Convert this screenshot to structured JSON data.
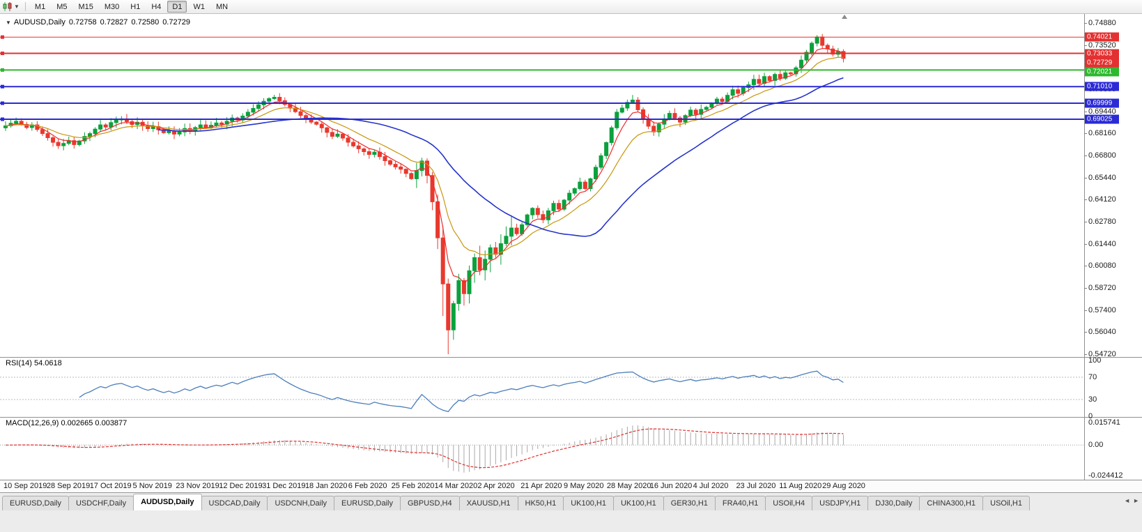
{
  "toolbar": {
    "timeframes": [
      "M1",
      "M5",
      "M15",
      "M30",
      "H1",
      "H4",
      "D1",
      "W1",
      "MN"
    ],
    "active_timeframe": "D1"
  },
  "main_chart": {
    "header": {
      "collapse_icon": "▼",
      "title": "AUDUSD,Daily",
      "open": "0.72758",
      "high": "0.72827",
      "low": "0.72580",
      "close": "0.72729"
    },
    "price_axis_ticks": [
      "0.74880",
      "0.73520",
      "0.72160",
      "0.70800",
      "0.69440",
      "0.68160",
      "0.66800",
      "0.65440",
      "0.64120",
      "0.62780",
      "0.61440",
      "0.60080",
      "0.58720",
      "0.57400",
      "0.56040",
      "0.54720"
    ],
    "horizontal_lines": [
      {
        "label": "0.74021",
        "price": 0.74021,
        "color": "#e33030",
        "thickness": 1
      },
      {
        "label": "0.73033",
        "price": 0.73033,
        "color": "#e33030",
        "thickness": 2
      },
      {
        "label": "0.72021",
        "price": 0.72021,
        "color": "#2db82d",
        "thickness": 2
      },
      {
        "label": "0.71010",
        "price": 0.7101,
        "color": "#2a2ad6",
        "thickness": 2
      },
      {
        "label": "0.69999",
        "price": 0.69999,
        "color": "#2a2ad6",
        "thickness": 2
      },
      {
        "label": "0.69025",
        "price": 0.69025,
        "color": "#2a2ad6",
        "thickness": 2
      }
    ],
    "current_price": {
      "label": "0.72729",
      "price": 0.72729,
      "color": "#e33030"
    }
  },
  "rsi_panel": {
    "label": "RSI(14) 54.0618",
    "axis_ticks": [
      {
        "label": "100",
        "value": 100
      },
      {
        "label": "70",
        "value": 70
      },
      {
        "label": "30",
        "value": 30
      },
      {
        "label": "0",
        "value": 0
      }
    ],
    "levels": [
      70,
      30
    ]
  },
  "macd_panel": {
    "label": "MACD(12,26,9) 0.002665 0.003877",
    "axis_max_label": "0.015741",
    "axis_zero_label": "0.00",
    "axis_min_label": "-0.024412"
  },
  "time_axis": {
    "dates": [
      "10 Sep 2019",
      "28 Sep 2019",
      "17 Oct 2019",
      "5 Nov 2019",
      "23 Nov 2019",
      "12 Dec 2019",
      "31 Dec 2019",
      "18 Jan 2020",
      "6 Feb 2020",
      "25 Feb 2020",
      "14 Mar 2020",
      "2 Apr 2020",
      "21 Apr 2020",
      "9 May 2020",
      "28 May 2020",
      "16 Jun 2020",
      "4 Jul 2020",
      "23 Jul 2020",
      "11 Aug 2020",
      "29 Aug 2020"
    ]
  },
  "tab_bar": {
    "tabs": [
      "EURUSD,Daily",
      "USDCHF,Daily",
      "AUDUSD,Daily",
      "USDCAD,Daily",
      "USDCNH,Daily",
      "EURUSD,Daily",
      "GBPUSD,H4",
      "XAUUSD,H1",
      "HK50,H1",
      "UK100,H1",
      "UK100,H1",
      "GER30,H1",
      "FRA40,H1",
      "USOil,H4",
      "USDJPY,H1",
      "DJ30,Daily",
      "CHINA300,H1",
      "USOil,H1"
    ],
    "active_index": 2
  },
  "chart_data": {
    "type": "candlestick",
    "symbol": "AUDUSD",
    "timeframe": "Daily",
    "title": "AUDUSD,Daily 0.72758 0.72827 0.72580 0.72729",
    "price_range": {
      "axis_top": 0.7488,
      "axis_bottom": 0.5472
    },
    "closes": [
      0.6862,
      0.6878,
      0.689,
      0.6871,
      0.6852,
      0.6868,
      0.684,
      0.6815,
      0.679,
      0.6762,
      0.6741,
      0.6755,
      0.6772,
      0.6748,
      0.677,
      0.6798,
      0.6815,
      0.6842,
      0.6868,
      0.6855,
      0.6882,
      0.6898,
      0.6905,
      0.6888,
      0.687,
      0.6884,
      0.6862,
      0.6845,
      0.6858,
      0.6838,
      0.682,
      0.6832,
      0.6812,
      0.6825,
      0.6846,
      0.683,
      0.6852,
      0.6868,
      0.685,
      0.6866,
      0.688,
      0.6872,
      0.689,
      0.691,
      0.6898,
      0.6922,
      0.6945,
      0.6968,
      0.699,
      0.7012,
      0.7028,
      0.7036,
      0.7015,
      0.6992,
      0.697,
      0.6948,
      0.6925,
      0.6905,
      0.6885,
      0.6872,
      0.685,
      0.6822,
      0.6798,
      0.6812,
      0.6788,
      0.6762,
      0.674,
      0.6722,
      0.6705,
      0.6688,
      0.6702,
      0.6675,
      0.665,
      0.6628,
      0.6612,
      0.6598,
      0.6572,
      0.654,
      0.659,
      0.6648,
      0.656,
      0.64,
      0.618,
      0.59,
      0.562,
      0.578,
      0.592,
      0.584,
      0.598,
      0.606,
      0.5985,
      0.605,
      0.612,
      0.608,
      0.6145,
      0.619,
      0.624,
      0.6205,
      0.626,
      0.632,
      0.636,
      0.6322,
      0.629,
      0.6345,
      0.639,
      0.6355,
      0.641,
      0.6452,
      0.648,
      0.652,
      0.648,
      0.654,
      0.661,
      0.668,
      0.676,
      0.685,
      0.6945,
      0.697,
      0.7005,
      0.7019,
      0.696,
      0.6905,
      0.686,
      0.6825,
      0.6872,
      0.6905,
      0.6938,
      0.691,
      0.6885,
      0.6925,
      0.6958,
      0.6932,
      0.6962,
      0.6975,
      0.6998,
      0.7025,
      0.701,
      0.7048,
      0.7082,
      0.706,
      0.7095,
      0.7112,
      0.7145,
      0.712,
      0.7162,
      0.7138,
      0.7175,
      0.7152,
      0.7185,
      0.7178,
      0.7215,
      0.7262,
      0.731,
      0.7365,
      0.7403,
      0.7352,
      0.733,
      0.7298,
      0.7315,
      0.7273
    ],
    "low_overrides": {
      "83": 0.5705,
      "84": 0.5472,
      "85": 0.556
    },
    "high_overrides": {
      "119": 0.705,
      "154": 0.7414
    },
    "candle_up_color": "#0ba13d",
    "candle_down_color": "#e8392e",
    "moving_averages": [
      {
        "name": "fast-ma",
        "type": "ema",
        "period": 5,
        "color": "#f02a2a"
      },
      {
        "name": "medium-ma",
        "type": "ema",
        "period": 12,
        "color": "#c8960c"
      },
      {
        "name": "slow-ma",
        "type": "sma",
        "period": 30,
        "color": "#2633cc"
      }
    ],
    "indicators": {
      "rsi": {
        "period": 14,
        "color": "#4a7ebb",
        "current": "54.0618"
      },
      "macd": {
        "fast": 12,
        "slow": 26,
        "signal": 9,
        "histogram_color": "#a8a8a8",
        "signal_color": "#e03030",
        "values": "0.002665 0.003877"
      }
    }
  }
}
